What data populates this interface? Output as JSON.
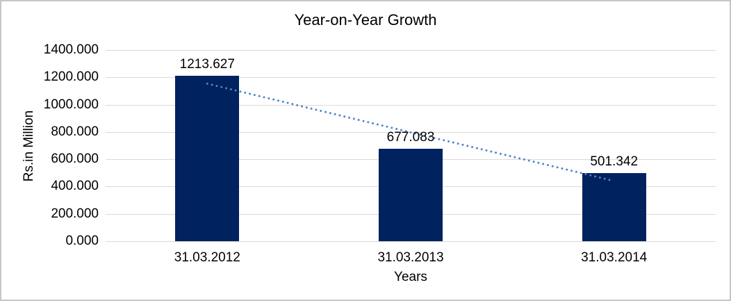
{
  "window": {
    "background": "#FFFFFF",
    "border_color": "#C6C6C6"
  },
  "chart_data": {
    "type": "bar",
    "title": "Year-on-Year Growth",
    "categories": [
      "31.03.2012",
      "31.03.2013",
      "31.03.2014"
    ],
    "values": [
      1213.627,
      677.083,
      501.342
    ],
    "data_labels": [
      "1213.627",
      "677.083",
      "501.342"
    ],
    "xlabel": "Years",
    "ylabel": "Rs.in Million",
    "ylim": [
      0,
      1400
    ],
    "ytick_step": 200,
    "ytick_labels": [
      "1400.000",
      "1200.000",
      "1000.000",
      "800.000",
      "600.000",
      "400.000",
      "200.000",
      "0.000"
    ],
    "grid": true,
    "legend": "none",
    "trendline": {
      "fit": "linear",
      "style": "dotted"
    },
    "colors": {
      "bar": "#00225F",
      "trendline": "#4E86C8",
      "gridline": "#D9D9D9",
      "text": "#000000"
    }
  }
}
